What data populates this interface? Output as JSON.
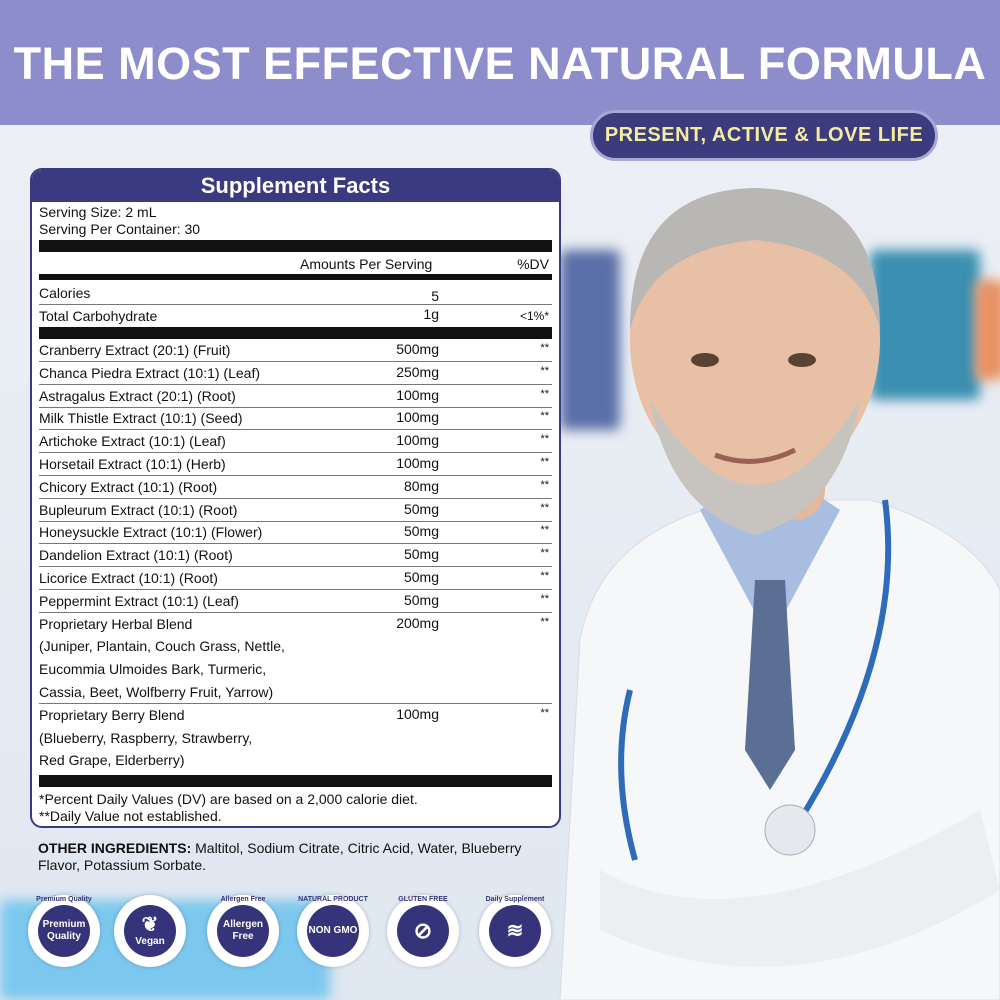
{
  "header": {
    "title": "THE MOST EFFECTIVE NATURAL FORMULA",
    "tagline": "PRESENT, ACTIVE & LOVE LIFE"
  },
  "colors": {
    "header": "#8e8dcb",
    "navy": "#3a3a80",
    "tagline_text": "#f4eda0"
  },
  "facts": {
    "title": "Supplement Facts",
    "serving_size": "Serving Size: 2 mL",
    "servings": "Serving Per Container: 30",
    "col_amount": "Amounts Per Serving",
    "col_dv": "%DV",
    "calories": {
      "name": "Calories",
      "amount": "5",
      "dv": ""
    },
    "carbs": {
      "name": "Total Carbohydrate",
      "amount": "1g",
      "dv": "<1%*"
    },
    "ingredients": [
      {
        "name": "Cranberry Extract (20:1) (Fruit)",
        "amount": "500mg",
        "dv": "**"
      },
      {
        "name": "Chanca Piedra Extract (10:1) (Leaf)",
        "amount": "250mg",
        "dv": "**"
      },
      {
        "name": "Astragalus Extract (20:1) (Root)",
        "amount": "100mg",
        "dv": "**"
      },
      {
        "name": "Milk Thistle Extract (10:1) (Seed)",
        "amount": "100mg",
        "dv": "**"
      },
      {
        "name": "Artichoke Extract (10:1) (Leaf)",
        "amount": "100mg",
        "dv": "**"
      },
      {
        "name": "Horsetail Extract (10:1) (Herb)",
        "amount": "100mg",
        "dv": "**"
      },
      {
        "name": "Chicory Extract (10:1) (Root)",
        "amount": "80mg",
        "dv": "**"
      },
      {
        "name": "Bupleurum Extract (10:1) (Root)",
        "amount": "50mg",
        "dv": "**"
      },
      {
        "name": "Honeysuckle Extract (10:1) (Flower)",
        "amount": "50mg",
        "dv": "**"
      },
      {
        "name": "Dandelion Extract (10:1) (Root)",
        "amount": "50mg",
        "dv": "**"
      },
      {
        "name": "Licorice Extract (10:1) (Root)",
        "amount": "50mg",
        "dv": "**"
      },
      {
        "name": "Peppermint Extract (10:1) (Leaf)",
        "amount": "50mg",
        "dv": "**"
      }
    ],
    "blends": [
      {
        "name": "Proprietary Herbal Blend",
        "amount": "200mg",
        "dv": "**",
        "lines": [
          "(Juniper, Plantain, Couch Grass, Nettle,",
          "Eucommia Ulmoides Bark, Turmeric,",
          "Cassia, Beet, Wolfberry Fruit, Yarrow)"
        ]
      },
      {
        "name": "Proprietary Berry Blend",
        "amount": "100mg",
        "dv": "**",
        "lines": [
          "(Blueberry, Raspberry, Strawberry,",
          "Red Grape, Elderberry)"
        ]
      }
    ],
    "footnote1": "*Percent Daily Values (DV) are based on a 2,000 calorie diet.",
    "footnote2": "**Daily Value not established."
  },
  "other": {
    "label": "OTHER INGREDIENTS:",
    "text": " Maltitol, Sodium Citrate, Citric Acid, Water, Blueberry Flavor, Potassium Sorbate."
  },
  "badges": [
    {
      "ring": "Premium Quality",
      "center": "Premium Quality",
      "icon": "premium-badge-icon"
    },
    {
      "ring": "",
      "center": "Vegan",
      "icon": "leaf-icon"
    },
    {
      "ring": "Allergen Free",
      "center": "Allergen Free",
      "icon": "allergen-free-icon"
    },
    {
      "ring": "NATURAL PRODUCT",
      "center": "NON GMO",
      "icon": "non-gmo-icon"
    },
    {
      "ring": "GLUTEN FREE",
      "center": "",
      "icon": "gluten-free-wheat-icon"
    },
    {
      "ring": "Daily Supplement",
      "center": "",
      "icon": "daily-supplement-icon"
    }
  ]
}
